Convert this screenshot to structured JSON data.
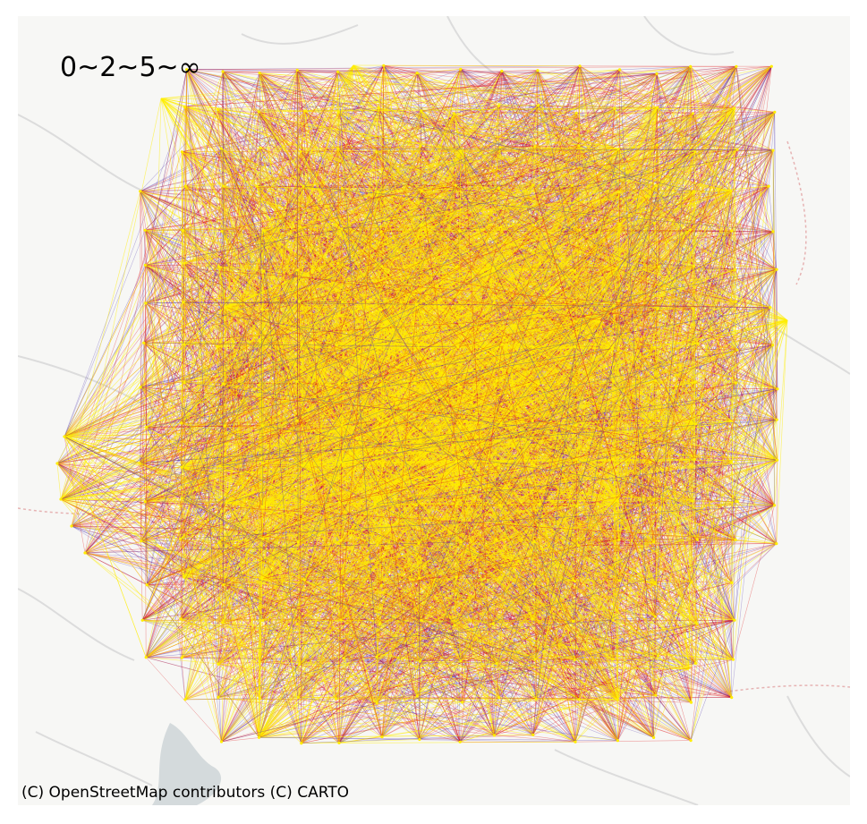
{
  "map": {
    "legend_label": "0~2~5~∞",
    "attribution": "(C) OpenStreetMap contributors (C) CARTO",
    "basemap": {
      "land_color": "#f7f7f5",
      "road_color": "#dcdcdc",
      "water_color": "#d4dadc",
      "boundary_color": "#e6b3b3"
    },
    "flow_colors": {
      "low": "#4b2fb0",
      "mid": "#e0181b",
      "high": "#ffee00"
    },
    "flow_bins": [
      "0~2",
      "2~5",
      "5~∞"
    ]
  }
}
